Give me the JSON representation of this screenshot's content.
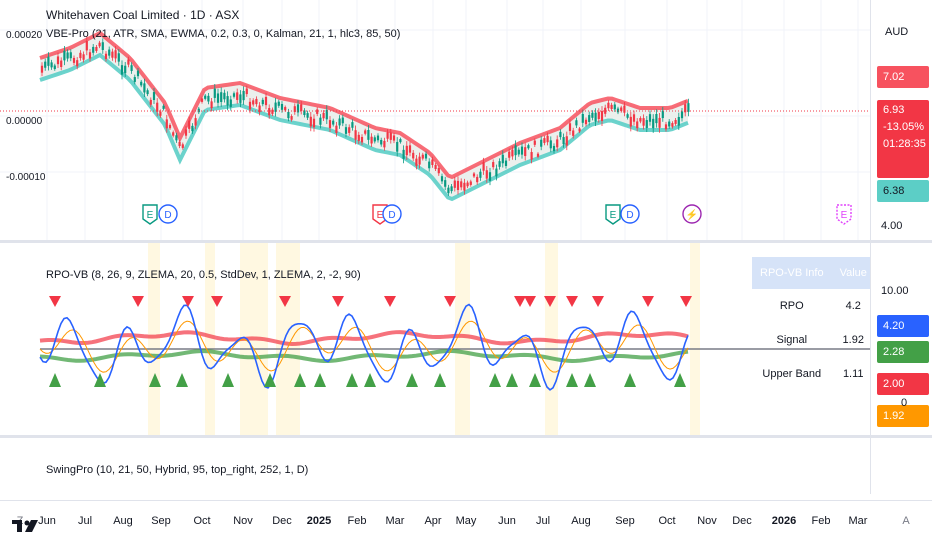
{
  "main": {
    "title": "Whitehaven Coal Limited · 1D · ASX",
    "indicator": "VBE-Pro (21, ATR, SMA, EWMA, 0.2, 0.3, 0, Kalman, 21, 1, hlc3, 85, 50)",
    "left_labels": [
      "0.00020",
      "0.00000",
      "-0.00010"
    ],
    "currency": "AUD",
    "price_chips": [
      {
        "value": "7.02",
        "color": "#f7525f"
      },
      {
        "value": "6.93",
        "color": "#f23645"
      },
      {
        "value": "-13.05%",
        "color": "#f23645"
      },
      {
        "value": "01:28:35",
        "color": "#f23645"
      },
      {
        "value": "6.38",
        "color": "#5ccec6"
      }
    ],
    "scale_bottom": "4.00",
    "events": [
      {
        "label": "E",
        "kind": "earnings",
        "color": "#089981"
      },
      {
        "label": "D",
        "kind": "dividend",
        "color": "#2962ff"
      },
      {
        "label": "E",
        "kind": "earnings",
        "color": "#f23645"
      },
      {
        "label": "D",
        "kind": "dividend",
        "color": "#2962ff"
      },
      {
        "label": "E",
        "kind": "earnings",
        "color": "#089981"
      },
      {
        "label": "D",
        "kind": "dividend",
        "color": "#2962ff"
      },
      {
        "label": "⚡",
        "kind": "split",
        "color": "#9c27b0"
      },
      {
        "label": "E",
        "kind": "earnings-future",
        "color": "#e040fb"
      }
    ]
  },
  "oscillator": {
    "indicator": "RPO-VB (8, 26, 9, ZLEMA, 20, 0.5, StdDev, 1, ZLEMA, 2, -2, 90)",
    "table_header": [
      "RPO-VB Info",
      "Value"
    ],
    "table_rows": [
      {
        "label": "RPO",
        "value": "4.2"
      },
      {
        "label": "Signal",
        "value": "1.92"
      },
      {
        "label": "Upper Band",
        "value": "1.11"
      }
    ],
    "scale_top": "10.00",
    "scale_mid": "0",
    "value_chips": [
      {
        "value": "4.20",
        "color": "#2962ff"
      },
      {
        "value": "2.28",
        "color": "#43a047"
      },
      {
        "value": "2.00",
        "color": "#f23645"
      },
      {
        "value": "1.92",
        "color": "#ff9800"
      }
    ]
  },
  "swing": {
    "indicator": "SwingPro (10, 21, 50, Hybrid, 95, top_right, 252, 1, D)"
  },
  "time_axis": {
    "labels": [
      "Jun",
      "Jul",
      "Aug",
      "Sep",
      "Oct",
      "Nov",
      "Dec",
      "2025",
      "Feb",
      "Mar",
      "Apr",
      "May",
      "Jun",
      "Jul",
      "Aug",
      "Sep",
      "Oct",
      "Nov",
      "Dec",
      "2026",
      "Feb",
      "Mar"
    ],
    "bold": [
      "2025",
      "2026"
    ],
    "left_glyph": "Z",
    "right_glyph": "A"
  }
}
